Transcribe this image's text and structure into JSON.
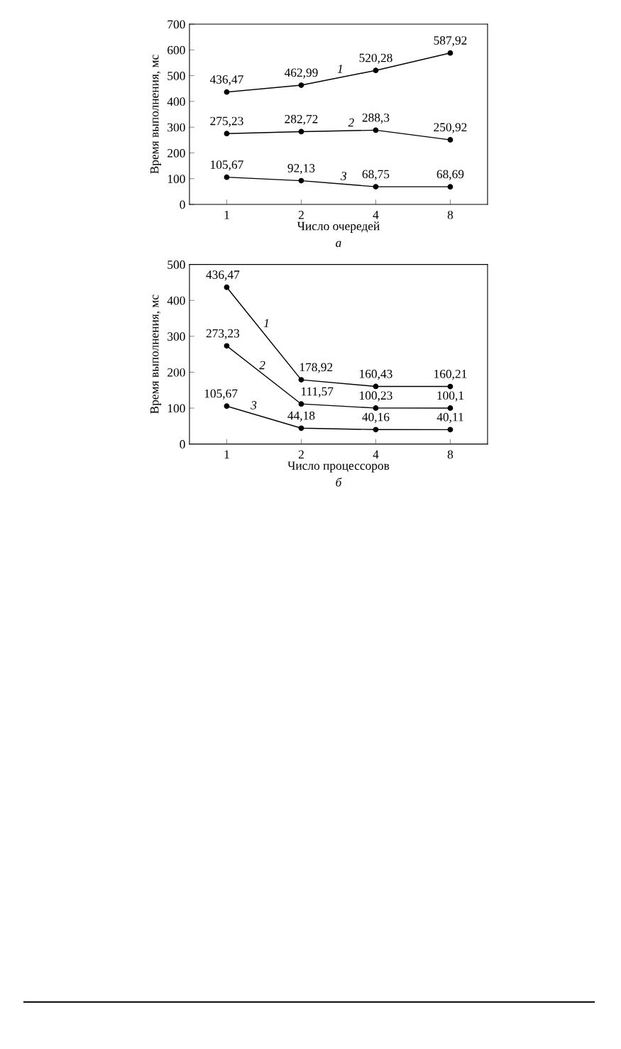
{
  "chart_data": [
    {
      "type": "line",
      "categories": [
        "1",
        "2",
        "4",
        "8"
      ],
      "xlabel": "Число очередей",
      "ylabel": "Время выполнения, мс",
      "ylim": [
        0,
        700
      ],
      "yticks": [
        0,
        100,
        200,
        300,
        400,
        500,
        600,
        700
      ],
      "marker": "circle",
      "line_style": "solid",
      "annotations": [
        "а"
      ],
      "series": [
        {
          "name": "1",
          "color": "#000000",
          "values": [
            436.47,
            462.99,
            520.28,
            587.92
          ],
          "value_labels": [
            "436,47",
            "462,99",
            "520,28",
            "587,92"
          ]
        },
        {
          "name": "2",
          "color": "#000000",
          "values": [
            275.23,
            282.72,
            288.3,
            250.92
          ],
          "value_labels": [
            "275,23",
            "282,72",
            "288,3",
            "250,92"
          ]
        },
        {
          "name": "3",
          "color": "#000000",
          "values": [
            105.67,
            92.13,
            68.75,
            68.69
          ],
          "value_labels": [
            "105,67",
            "92,13",
            "68,75",
            "68,69"
          ]
        }
      ]
    },
    {
      "type": "line",
      "categories": [
        "1",
        "2",
        "4",
        "8"
      ],
      "xlabel": "Число процессоров",
      "ylabel": "Время выполнения, мс",
      "ylim": [
        0,
        500
      ],
      "yticks": [
        0,
        100,
        200,
        300,
        400,
        500
      ],
      "marker": "circle",
      "line_style": "solid",
      "annotations": [
        "б"
      ],
      "series": [
        {
          "name": "1",
          "color": "#000000",
          "values": [
            436.47,
            178.92,
            160.43,
            160.21
          ],
          "value_labels": [
            "436,47",
            "178,92",
            "160,43",
            "160,21"
          ]
        },
        {
          "name": "2",
          "color": "#000000",
          "values": [
            273.23,
            111.57,
            100.23,
            100.1
          ],
          "value_labels": [
            "273,23",
            "111,57",
            "100,23",
            "100,1"
          ]
        },
        {
          "name": "3",
          "color": "#000000",
          "values": [
            105.67,
            44.18,
            40.16,
            40.11
          ],
          "value_labels": [
            "105,67",
            "44,18",
            "40,16",
            "40,11"
          ]
        }
      ]
    }
  ]
}
